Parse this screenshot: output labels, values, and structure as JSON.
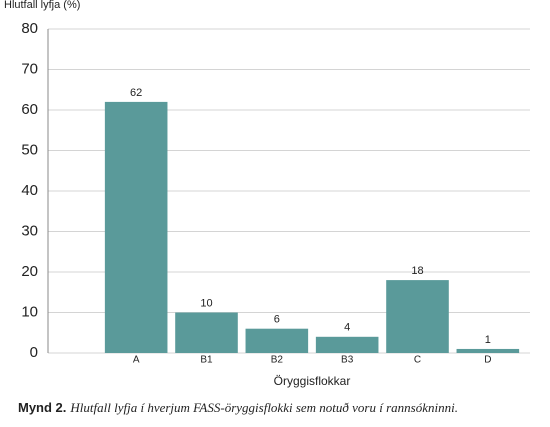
{
  "chart_data": {
    "type": "bar",
    "y_axis_label": "Hlutfall lyfja (%)",
    "x_axis_label": "Öryggisflokkar",
    "categories": [
      "A",
      "B1",
      "B2",
      "B3",
      "C",
      "D"
    ],
    "values": [
      62,
      10,
      6,
      4,
      18,
      1
    ],
    "color": "#5a9a9a",
    "ylim": [
      0,
      80
    ],
    "yticks": [
      0,
      10,
      20,
      30,
      40,
      50,
      60,
      70,
      80
    ],
    "grid": true
  },
  "caption": {
    "label": "Mynd 2.",
    "text": "Hlutfall lyfja í hverjum FASS-öryggisflokki sem notuð voru í rannsókninni."
  }
}
